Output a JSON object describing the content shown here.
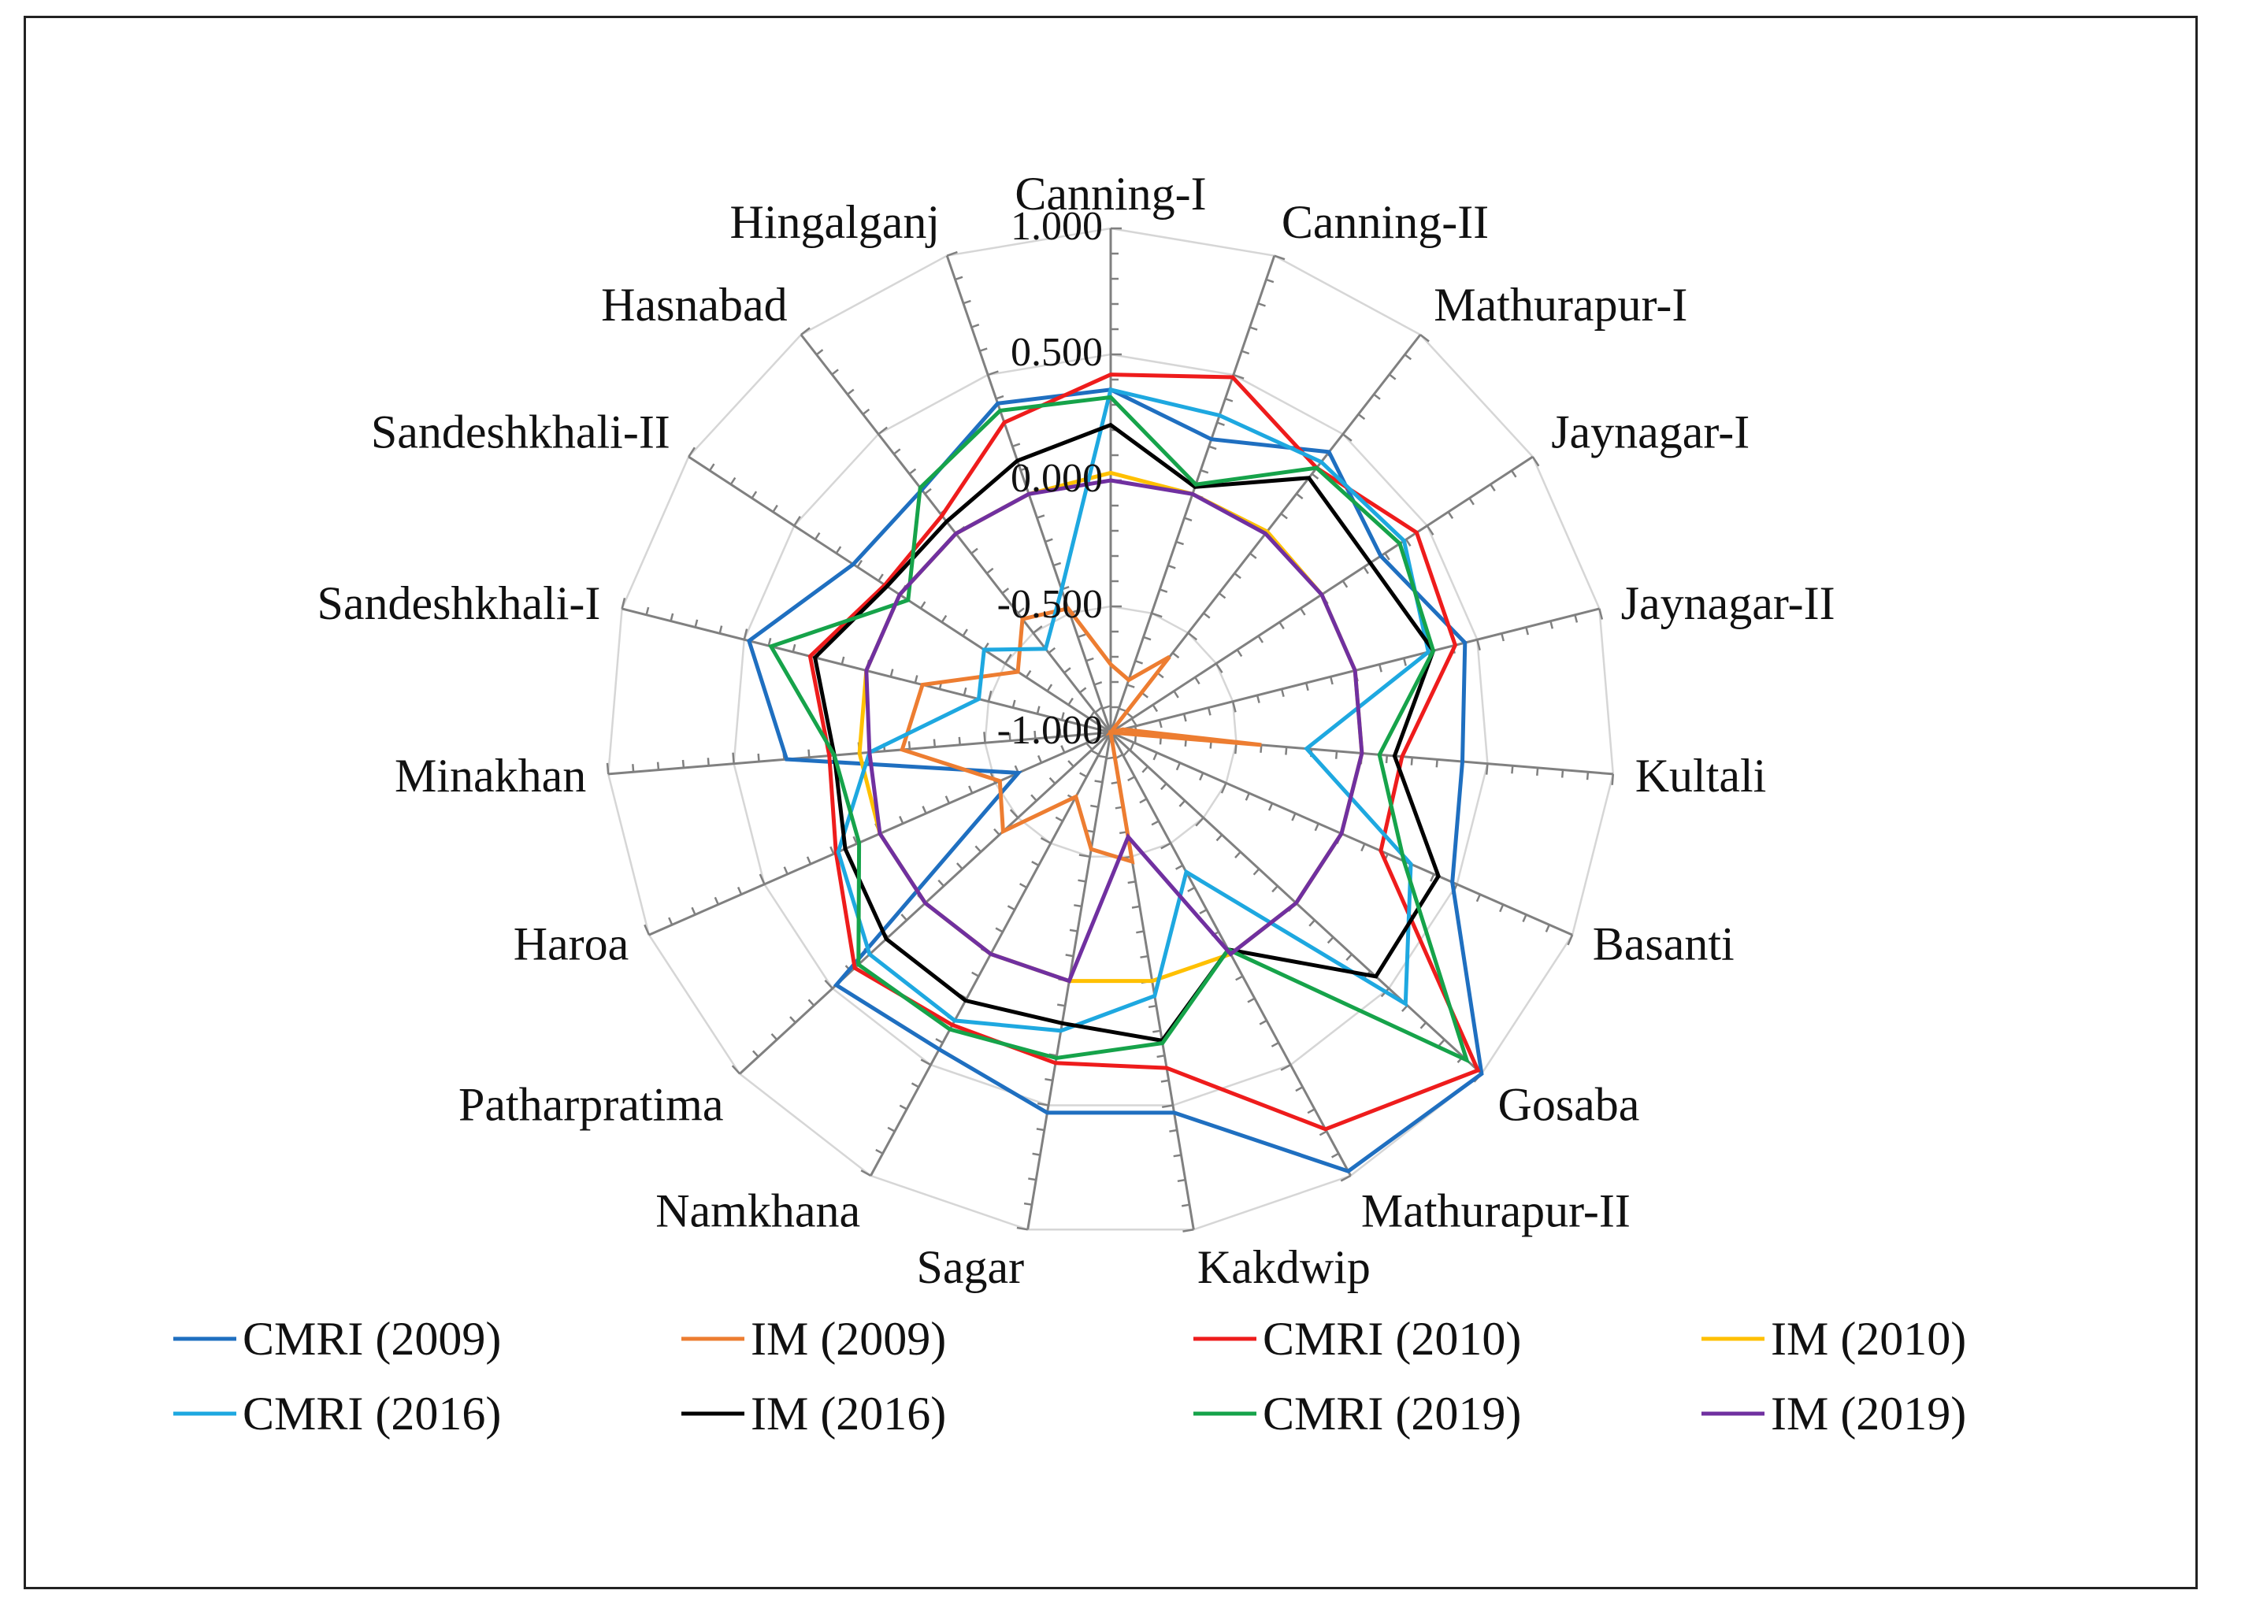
{
  "chart_data": {
    "type": "radar",
    "title": "",
    "categories": [
      "Canning-I",
      "Canning-II",
      "Mathurapur-I",
      "Jaynagar-I",
      "Jaynagar-II",
      "Kultali",
      "Basanti",
      "Gosaba",
      "Mathurapur-II",
      "Kakdwip",
      "Sagar",
      "Namkhana",
      "Patharpratima",
      "Haroa",
      "Minakhan",
      "Sandeshkhali-I",
      "Sandeshkhali-II",
      "Hasnabad",
      "Hingalganj"
    ],
    "axis": {
      "min": -1.0,
      "max": 1.0,
      "ticks": [
        1.0,
        0.5,
        0.0,
        -0.5,
        -1.0
      ],
      "tick_labels": [
        "1.000",
        "0.500",
        "0.000",
        "-0.500",
        "-1.000"
      ]
    },
    "series": [
      {
        "name": "CMRI (2009)",
        "color": "#1f6fc0",
        "values": [
          0.36,
          0.23,
          0.41,
          0.28,
          0.45,
          0.4,
          0.48,
          1.0,
          0.98,
          0.53,
          0.53,
          0.43,
          0.48,
          -0.6,
          0.29,
          0.48,
          0.22,
          0.22,
          0.38
        ]
      },
      {
        "name": "IM (2009)",
        "color": "#ed7d31",
        "values": [
          -0.73,
          -0.78,
          -0.62,
          -1.0,
          -0.95,
          -0.4,
          -1.0,
          -1.0,
          -1.0,
          -0.48,
          -0.53,
          -0.71,
          -0.42,
          -0.52,
          -0.17,
          -0.23,
          -0.56,
          -0.43,
          -0.48
        ]
      },
      {
        "name": "CMRI (2010)",
        "color": "#ee1c1c",
        "values": [
          0.42,
          0.49,
          0.33,
          0.45,
          0.41,
          0.16,
          0.17,
          0.98,
          0.79,
          0.35,
          0.33,
          0.32,
          0.38,
          0.19,
          0.12,
          0.23,
          0.07,
          0.09,
          0.3
        ]
      },
      {
        "name": "IM (2010)",
        "color": "#ffc000",
        "values": [
          0.03,
          0.0,
          0.01,
          0.0,
          0.0,
          0.0,
          0.0,
          0.0,
          0.0,
          0.0,
          0.0,
          0.0,
          0.0,
          0.0,
          0.0,
          0.0,
          0.0,
          0.0,
          0.0
        ]
      },
      {
        "name": "CMRI (2016)",
        "color": "#1ea8e0",
        "values": [
          0.36,
          0.33,
          0.36,
          0.39,
          0.3,
          -0.22,
          0.3,
          0.59,
          -0.37,
          0.06,
          0.2,
          0.3,
          0.3,
          0.18,
          -0.04,
          -0.46,
          -0.4,
          -0.58,
          -0.4
        ]
      },
      {
        "name": "IM (2016)",
        "color": "#000000",
        "values": [
          0.22,
          0.03,
          0.28,
          0.23,
          0.32,
          0.13,
          0.42,
          0.43,
          -0.02,
          0.24,
          0.17,
          0.21,
          0.21,
          0.15,
          0.1,
          0.21,
          0.06,
          0.06,
          0.14
        ]
      },
      {
        "name": "CMRI (2019)",
        "color": "#16a34a",
        "values": [
          0.33,
          0.04,
          0.33,
          0.37,
          0.32,
          0.07,
          0.27,
          0.92,
          -0.02,
          0.25,
          0.31,
          0.34,
          0.36,
          0.09,
          0.1,
          0.39,
          -0.04,
          0.23,
          0.35
        ]
      },
      {
        "name": "IM (2019)",
        "color": "#7030a0",
        "values": [
          0.0,
          0.0,
          0.0,
          0.0,
          0.0,
          0.0,
          0.0,
          0.0,
          0.0,
          -0.58,
          0.0,
          0.0,
          0.0,
          0.0,
          -0.04,
          0.0,
          0.0,
          0.0,
          0.0
        ]
      }
    ],
    "legend": {
      "placement": "bottom",
      "columns": 4
    }
  }
}
